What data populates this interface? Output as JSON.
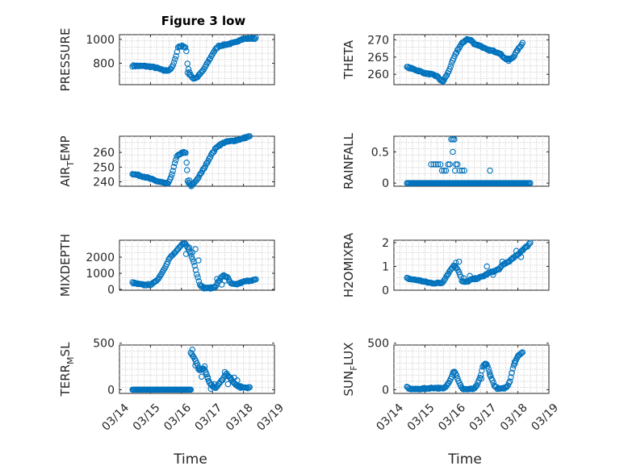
{
  "figure": {
    "title": "Figure 3 low",
    "xlabel": "Time",
    "x_tick_labels": [
      "03/14",
      "03/15",
      "03/16",
      "03/17",
      "03/18",
      "03/19"
    ],
    "marker_color": "#0072BD"
  },
  "chart_data": [
    {
      "id": "pressure",
      "type": "scatter",
      "ylabel": "PRESSURE",
      "xlim": [
        0,
        5
      ],
      "ylim": [
        620,
        1040
      ],
      "yticks": [
        800,
        1000
      ],
      "ytick_labels": [
        "800",
        "1000"
      ],
      "grid": true,
      "keypoints": [
        [
          0.42,
          778
        ],
        [
          0.8,
          776
        ],
        [
          1.05,
          770
        ],
        [
          1.25,
          757
        ],
        [
          1.4,
          740
        ],
        [
          1.5,
          738
        ],
        [
          1.6,
          743
        ],
        [
          1.7,
          765
        ],
        [
          1.78,
          820
        ],
        [
          1.85,
          890
        ],
        [
          1.9,
          940
        ],
        [
          2.05,
          945
        ],
        [
          2.15,
          930
        ],
        [
          2.2,
          768
        ],
        [
          2.3,
          700
        ],
        [
          2.38,
          670
        ],
        [
          2.5,
          680
        ],
        [
          2.7,
          740
        ],
        [
          2.9,
          830
        ],
        [
          3.05,
          900
        ],
        [
          3.2,
          945
        ],
        [
          3.5,
          960
        ],
        [
          3.75,
          975
        ],
        [
          3.9,
          1000
        ],
        [
          4.0,
          1005
        ],
        [
          4.2,
          1008
        ],
        [
          4.4,
          1010
        ]
      ],
      "extra": [
        [
          2.2,
          720
        ],
        [
          2.25,
          705
        ]
      ],
      "n": 120
    },
    {
      "id": "theta",
      "type": "scatter",
      "ylabel": "THETA",
      "xlim": [
        0,
        5
      ],
      "ylim": [
        257,
        271.5
      ],
      "yticks": [
        260,
        265,
        270
      ],
      "ytick_labels": [
        "260",
        "265",
        "270"
      ],
      "grid": true,
      "keypoints": [
        [
          0.42,
          262.1
        ],
        [
          0.6,
          261.6
        ],
        [
          0.8,
          261.0
        ],
        [
          1.0,
          260.3
        ],
        [
          1.2,
          260.0
        ],
        [
          1.4,
          259.4
        ],
        [
          1.52,
          258.2
        ],
        [
          1.6,
          258.1
        ],
        [
          1.75,
          260.5
        ],
        [
          1.9,
          264
        ],
        [
          2.05,
          267
        ],
        [
          2.2,
          269
        ],
        [
          2.35,
          270.2
        ],
        [
          2.5,
          269.8
        ],
        [
          2.6,
          268.8
        ],
        [
          2.8,
          268.2
        ],
        [
          3.0,
          267.1
        ],
        [
          3.2,
          266.8
        ],
        [
          3.4,
          266.2
        ],
        [
          3.6,
          264.5
        ],
        [
          3.75,
          264.3
        ],
        [
          3.85,
          265
        ],
        [
          3.95,
          266.5
        ],
        [
          4.05,
          267.8
        ],
        [
          4.15,
          269.1
        ]
      ],
      "extra": [
        [
          1.55,
          258.4
        ],
        [
          1.58,
          257.9
        ],
        [
          3.7,
          263.9
        ],
        [
          3.78,
          264.6
        ]
      ],
      "n": 120
    },
    {
      "id": "air-temp",
      "type": "scatter",
      "ylabel": "AIR_TEMP",
      "xlim": [
        0,
        5
      ],
      "ylim": [
        237,
        271
      ],
      "yticks": [
        240,
        250,
        260
      ],
      "ytick_labels": [
        "240",
        "250",
        "260"
      ],
      "grid": true,
      "keypoints": [
        [
          0.42,
          245.5
        ],
        [
          0.6,
          244.5
        ],
        [
          0.8,
          243.5
        ],
        [
          1.0,
          242
        ],
        [
          1.2,
          240.5
        ],
        [
          1.4,
          239.5
        ],
        [
          1.55,
          238.5
        ],
        [
          1.65,
          242
        ],
        [
          1.75,
          250
        ],
        [
          1.85,
          257
        ],
        [
          1.95,
          259
        ],
        [
          2.05,
          260
        ],
        [
          2.15,
          259.5
        ],
        [
          2.2,
          240
        ],
        [
          2.3,
          237.5
        ],
        [
          2.4,
          239
        ],
        [
          2.55,
          243
        ],
        [
          2.75,
          250
        ],
        [
          2.95,
          258
        ],
        [
          3.15,
          264
        ],
        [
          3.4,
          267
        ],
        [
          3.7,
          268
        ],
        [
          3.9,
          269
        ],
        [
          4.05,
          270
        ],
        [
          4.2,
          271
        ]
      ],
      "extra": [
        [
          2.18,
          248
        ],
        [
          2.25,
          241
        ],
        [
          2.32,
          236.8
        ]
      ],
      "n": 120
    },
    {
      "id": "rainfall",
      "type": "scatter",
      "ylabel": "RAINFALL",
      "xlim": [
        0,
        5
      ],
      "ylim": [
        -0.05,
        0.75
      ],
      "yticks": [
        0,
        0.5
      ],
      "ytick_labels": [
        "0",
        "0.5"
      ],
      "grid": true,
      "baseline_range": [
        0.42,
        4.4
      ],
      "baseline_n": 115,
      "points": [
        [
          1.2,
          0.3
        ],
        [
          1.28,
          0.3
        ],
        [
          1.35,
          0.3
        ],
        [
          1.42,
          0.3
        ],
        [
          1.5,
          0.3
        ],
        [
          1.55,
          0.2
        ],
        [
          1.62,
          0.2
        ],
        [
          1.68,
          0.2
        ],
        [
          1.75,
          0.3
        ],
        [
          1.8,
          0.3
        ],
        [
          1.85,
          0.7
        ],
        [
          1.9,
          0.7
        ],
        [
          1.95,
          0.7
        ],
        [
          1.9,
          0.5
        ],
        [
          2.0,
          0.3
        ],
        [
          2.05,
          0.3
        ],
        [
          1.97,
          0.2
        ],
        [
          2.12,
          0.2
        ],
        [
          2.2,
          0.2
        ],
        [
          2.27,
          0.2
        ],
        [
          1.6,
          0.0
        ],
        [
          3.1,
          0.2
        ]
      ],
      "n": 0
    },
    {
      "id": "mixdepth",
      "type": "scatter",
      "ylabel": "MIXDEPTH",
      "xlim": [
        0,
        5
      ],
      "ylim": [
        -50,
        3050
      ],
      "yticks": [
        0,
        1000,
        2000
      ],
      "ytick_labels": [
        "0",
        "1000",
        "2000"
      ],
      "grid": true,
      "keypoints": [
        [
          0.42,
          420
        ],
        [
          0.6,
          330
        ],
        [
          0.8,
          280
        ],
        [
          1.0,
          300
        ],
        [
          1.15,
          450
        ],
        [
          1.3,
          800
        ],
        [
          1.45,
          1300
        ],
        [
          1.6,
          1900
        ],
        [
          1.75,
          2200
        ],
        [
          1.9,
          2500
        ],
        [
          2.0,
          2750
        ],
        [
          2.1,
          2900
        ],
        [
          2.2,
          2600
        ],
        [
          2.3,
          2200
        ],
        [
          2.4,
          1700
        ],
        [
          2.5,
          900
        ],
        [
          2.6,
          300
        ],
        [
          2.7,
          100
        ],
        [
          2.85,
          80
        ],
        [
          3.0,
          100
        ],
        [
          3.1,
          200
        ],
        [
          3.2,
          500
        ],
        [
          3.35,
          900
        ],
        [
          3.5,
          700
        ],
        [
          3.6,
          350
        ],
        [
          3.75,
          300
        ],
        [
          3.9,
          400
        ],
        [
          4.05,
          500
        ],
        [
          4.2,
          550
        ],
        [
          4.4,
          600
        ]
      ],
      "extra": [
        [
          2.15,
          2200
        ],
        [
          2.25,
          2600
        ],
        [
          2.35,
          2300
        ],
        [
          2.45,
          2500
        ],
        [
          2.55,
          1800
        ],
        [
          2.65,
          220
        ],
        [
          3.3,
          300
        ],
        [
          3.4,
          550
        ],
        [
          3.15,
          650
        ]
      ],
      "n": 120
    },
    {
      "id": "h2omixra",
      "type": "scatter",
      "ylabel": "H2OMIXRA",
      "xlim": [
        0,
        5
      ],
      "ylim": [
        0,
        2.1
      ],
      "yticks": [
        0,
        1,
        2
      ],
      "ytick_labels": [
        "0",
        "1",
        "2"
      ],
      "grid": true,
      "keypoints": [
        [
          0.42,
          0.5
        ],
        [
          0.6,
          0.45
        ],
        [
          0.8,
          0.42
        ],
        [
          1.0,
          0.35
        ],
        [
          1.2,
          0.3
        ],
        [
          1.4,
          0.3
        ],
        [
          1.55,
          0.3
        ],
        [
          1.65,
          0.5
        ],
        [
          1.75,
          0.7
        ],
        [
          1.85,
          0.9
        ],
        [
          1.95,
          1.05
        ],
        [
          2.05,
          0.9
        ],
        [
          2.15,
          0.6
        ],
        [
          2.2,
          0.35
        ],
        [
          2.35,
          0.35
        ],
        [
          2.5,
          0.45
        ],
        [
          2.7,
          0.5
        ],
        [
          2.9,
          0.6
        ],
        [
          3.1,
          0.75
        ],
        [
          3.25,
          0.8
        ],
        [
          3.4,
          0.9
        ],
        [
          3.55,
          1.1
        ],
        [
          3.7,
          1.2
        ],
        [
          3.85,
          1.35
        ],
        [
          4.0,
          1.5
        ],
        [
          4.15,
          1.7
        ],
        [
          4.3,
          1.85
        ],
        [
          4.4,
          2.0
        ]
      ],
      "extra": [
        [
          2.0,
          1.15
        ],
        [
          2.1,
          1.2
        ],
        [
          2.25,
          0.5
        ],
        [
          2.45,
          0.6
        ],
        [
          3.0,
          1.0
        ],
        [
          3.2,
          0.65
        ],
        [
          3.5,
          1.2
        ],
        [
          3.95,
          1.65
        ],
        [
          4.1,
          1.4
        ]
      ],
      "n": 120
    },
    {
      "id": "terr-msl",
      "type": "scatter",
      "ylabel": "TERR_MSL",
      "xlim": [
        0,
        5
      ],
      "ylim": [
        -40,
        480
      ],
      "yticks": [
        0,
        500
      ],
      "ytick_labels": [
        "0",
        "500"
      ],
      "grid": true,
      "baseline_range": [
        0.42,
        2.3
      ],
      "baseline_n": 70,
      "keypoints": [
        [
          2.3,
          400
        ],
        [
          2.4,
          350
        ],
        [
          2.5,
          280
        ],
        [
          2.6,
          200
        ],
        [
          2.7,
          230
        ],
        [
          2.8,
          180
        ],
        [
          2.9,
          80
        ],
        [
          3.0,
          40
        ],
        [
          3.1,
          20
        ],
        [
          3.2,
          60
        ],
        [
          3.35,
          120
        ],
        [
          3.45,
          170
        ],
        [
          3.55,
          140
        ],
        [
          3.65,
          90
        ],
        [
          3.75,
          50
        ],
        [
          3.85,
          40
        ],
        [
          3.95,
          30
        ],
        [
          4.05,
          20
        ],
        [
          4.2,
          20
        ]
      ],
      "extra": [
        [
          2.35,
          430
        ],
        [
          2.45,
          260
        ],
        [
          2.55,
          220
        ],
        [
          2.65,
          140
        ],
        [
          2.75,
          250
        ],
        [
          2.85,
          120
        ],
        [
          2.95,
          10
        ],
        [
          3.05,
          60
        ],
        [
          3.4,
          190
        ],
        [
          3.5,
          60
        ],
        [
          3.6,
          110
        ],
        [
          3.7,
          130
        ],
        [
          3.8,
          100
        ],
        [
          3.9,
          20
        ]
      ],
      "n": 60
    },
    {
      "id": "sun-flux",
      "type": "scatter",
      "ylabel": "SUN_FLUX",
      "xlim": [
        0,
        5
      ],
      "ylim": [
        -40,
        480
      ],
      "yticks": [
        0,
        500
      ],
      "ytick_labels": [
        "0",
        "500"
      ],
      "grid": true,
      "keypoints": [
        [
          0.42,
          30
        ],
        [
          0.5,
          10
        ],
        [
          0.7,
          5
        ],
        [
          0.9,
          10
        ],
        [
          1.1,
          15
        ],
        [
          1.3,
          20
        ],
        [
          1.5,
          15
        ],
        [
          1.6,
          10
        ],
        [
          1.7,
          40
        ],
        [
          1.8,
          100
        ],
        [
          1.9,
          170
        ],
        [
          1.95,
          200
        ],
        [
          2.0,
          170
        ],
        [
          2.1,
          80
        ],
        [
          2.2,
          10
        ],
        [
          2.4,
          5
        ],
        [
          2.6,
          10
        ],
        [
          2.7,
          60
        ],
        [
          2.8,
          150
        ],
        [
          2.85,
          230
        ],
        [
          2.9,
          270
        ],
        [
          3.0,
          270
        ],
        [
          3.05,
          220
        ],
        [
          3.15,
          120
        ],
        [
          3.25,
          40
        ],
        [
          3.35,
          10
        ],
        [
          3.5,
          10
        ],
        [
          3.65,
          30
        ],
        [
          3.75,
          100
        ],
        [
          3.85,
          250
        ],
        [
          3.95,
          330
        ],
        [
          4.05,
          380
        ],
        [
          4.15,
          400
        ]
      ],
      "extra": [
        [
          1.92,
          190
        ],
        [
          2.05,
          120
        ],
        [
          2.82,
          120
        ],
        [
          2.95,
          280
        ],
        [
          3.1,
          160
        ],
        [
          3.8,
          180
        ],
        [
          3.9,
          300
        ],
        [
          4.0,
          360
        ]
      ],
      "n": 120
    }
  ]
}
